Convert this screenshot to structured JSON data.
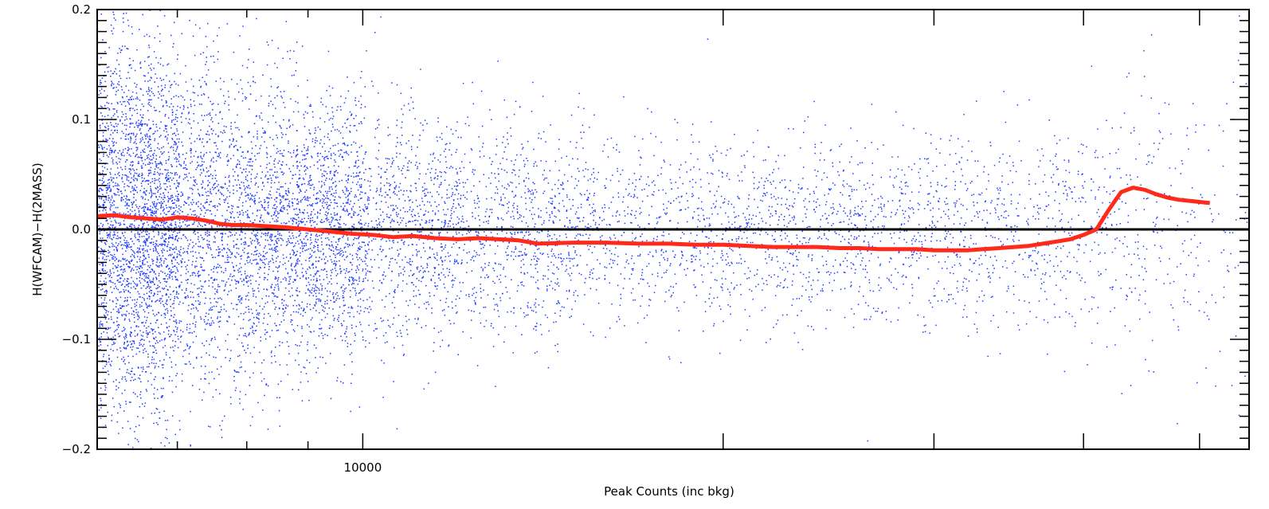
{
  "chart_data": {
    "type": "scatter",
    "title": "",
    "xlabel": "Peak Counts (inc bkg)",
    "ylabel": "H(WFCAM)−H(2MASS)",
    "xscale": "log",
    "xlim": [
      6000,
      55000
    ],
    "ylim": [
      -0.2,
      0.2
    ],
    "grid": false,
    "legend": "none",
    "x_tick_labels": [
      {
        "value": 10000,
        "label": "10000"
      }
    ],
    "x_major_ticks": [
      10000,
      20000,
      30000,
      40000,
      50000
    ],
    "y_ticks": [
      {
        "value": -0.2,
        "label": "−0.2"
      },
      {
        "value": -0.1,
        "label": "−0.1"
      },
      {
        "value": 0.0,
        "label": "0.0"
      },
      {
        "value": 0.1,
        "label": "0.1"
      },
      {
        "value": 0.2,
        "label": "0.2"
      }
    ],
    "reference_line": {
      "y": 0.0,
      "color": "#000000"
    },
    "series": [
      {
        "style": "points",
        "color": "#1f3bff",
        "description_counts_note": "",
        "density_profile": [
          {
            "x": 6000,
            "y_spread": 0.09,
            "count": 1400
          },
          {
            "x": 6500,
            "y_spread": 0.085,
            "count": 1500
          },
          {
            "x": 7000,
            "y_spread": 0.08,
            "count": 1400
          },
          {
            "x": 8000,
            "y_spread": 0.07,
            "count": 1300
          },
          {
            "x": 9000,
            "y_spread": 0.06,
            "count": 1100
          },
          {
            "x": 10000,
            "y_spread": 0.055,
            "count": 1000
          },
          {
            "x": 12000,
            "y_spread": 0.05,
            "count": 900
          },
          {
            "x": 15000,
            "y_spread": 0.045,
            "count": 800
          },
          {
            "x": 20000,
            "y_spread": 0.04,
            "count": 650
          },
          {
            "x": 25000,
            "y_spread": 0.04,
            "count": 500
          },
          {
            "x": 30000,
            "y_spread": 0.04,
            "count": 400
          },
          {
            "x": 35000,
            "y_spread": 0.045,
            "count": 300
          },
          {
            "x": 40000,
            "y_spread": 0.05,
            "count": 220
          },
          {
            "x": 45000,
            "y_spread": 0.06,
            "count": 150
          },
          {
            "x": 50000,
            "y_spread": 0.07,
            "count": 90
          },
          {
            "x": 55000,
            "y_spread": 0.08,
            "count": 50
          }
        ]
      },
      {
        "style": "line",
        "color": "#ff2a1a",
        "x": [
          6000,
          6200,
          6400,
          6600,
          6800,
          7000,
          7200,
          7400,
          7600,
          7800,
          8000,
          8300,
          8600,
          9000,
          9400,
          9800,
          10200,
          10600,
          11000,
          11500,
          12000,
          12500,
          13000,
          13500,
          14000,
          15000,
          16000,
          17000,
          18000,
          19000,
          20000,
          21000,
          22000,
          23000,
          24000,
          25000,
          26000,
          27000,
          28000,
          29000,
          30000,
          31000,
          32000,
          33000,
          34000,
          35000,
          36000,
          37000,
          38000,
          39000,
          40000,
          41000,
          42000,
          43000,
          44000,
          45000,
          46000,
          47000,
          48000,
          49000,
          50000,
          51000
        ],
        "y": [
          0.012,
          0.013,
          0.011,
          0.01,
          0.009,
          0.011,
          0.01,
          0.008,
          0.005,
          0.004,
          0.004,
          0.003,
          0.002,
          0.0,
          -0.002,
          -0.004,
          -0.005,
          -0.007,
          -0.006,
          -0.008,
          -0.009,
          -0.008,
          -0.009,
          -0.01,
          -0.013,
          -0.012,
          -0.012,
          -0.013,
          -0.013,
          -0.014,
          -0.014,
          -0.015,
          -0.016,
          -0.016,
          -0.016,
          -0.017,
          -0.017,
          -0.018,
          -0.018,
          -0.018,
          -0.019,
          -0.019,
          -0.019,
          -0.018,
          -0.017,
          -0.016,
          -0.015,
          -0.013,
          -0.011,
          -0.009,
          -0.005,
          0.0,
          0.018,
          0.034,
          0.038,
          0.036,
          0.032,
          0.029,
          0.027,
          0.026,
          0.025,
          0.024
        ]
      }
    ]
  }
}
